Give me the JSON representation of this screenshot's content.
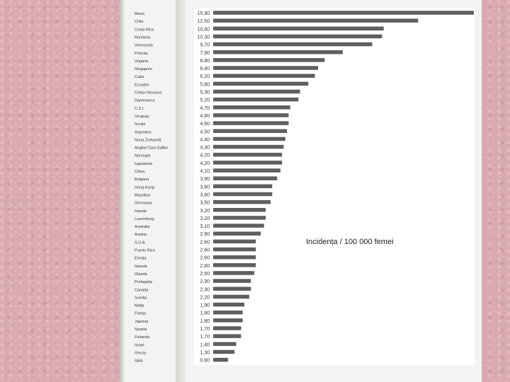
{
  "chart_data": {
    "type": "bar",
    "orientation": "horizontal",
    "title": "",
    "xlabel": "Incidența / 100 000 femei",
    "xlim": [
      0,
      15.9
    ],
    "grid": false,
    "categories": [
      "Mexic",
      "Chile",
      "Costa Rica",
      "România",
      "Venezuela",
      "Polonia",
      "Ungaria",
      "Singapore",
      "Cuba",
      "Ecuador",
      "Cehia+Slovacia",
      "Danemarca",
      "C.S.I.",
      "Uruguay",
      "Scoţia",
      "Argentina",
      "Noua Zeelandă",
      "Anglia+Ţara Galilor",
      "Norvegia",
      "Iugoslavia",
      "China",
      "Bulgaria",
      "Hong-Kong",
      "Mauritius",
      "Germania",
      "Irlanda",
      "Luxemburg",
      "Australia",
      "Austria",
      "S.U.A.",
      "Puerto Rico",
      "Elveţia",
      "Islanda",
      "Olanda",
      "Portugalia",
      "Canada",
      "Suedia",
      "Malta",
      "Franţa",
      "Japonia",
      "Spania",
      "Finlanda",
      "Israel",
      "Grecia",
      "Italia"
    ],
    "values": [
      15.9,
      12.5,
      10.4,
      10.3,
      9.7,
      7.9,
      6.8,
      6.4,
      6.2,
      5.8,
      5.3,
      5.2,
      4.7,
      4.6,
      4.6,
      4.5,
      4.4,
      4.3,
      4.2,
      4.2,
      4.1,
      3.9,
      3.6,
      3.6,
      3.5,
      3.2,
      3.2,
      3.1,
      2.9,
      2.6,
      2.6,
      2.6,
      2.6,
      2.5,
      2.3,
      2.3,
      2.2,
      1.9,
      1.8,
      1.8,
      1.7,
      1.7,
      1.4,
      1.3,
      0.9
    ],
    "value_labels": [
      "15,90",
      "12,50",
      "10,40",
      "10,30",
      "9,70",
      "7,90",
      "6,80",
      "6,40",
      "6,20",
      "5,80",
      "5,30",
      "5,20",
      "4,70",
      "4,60",
      "4,60",
      "4,50",
      "4,40",
      "4,30",
      "4,20",
      "4,20",
      "4,10",
      "3,90",
      "3,60",
      "3,60",
      "3,50",
      "3,20",
      "3,20",
      "3,10",
      "2,90",
      "2,60",
      "2,60",
      "2,60",
      "2,60",
      "2,50",
      "2,30",
      "2,30",
      "2,20",
      "1,90",
      "1,80",
      "1,80",
      "1,70",
      "1,70",
      "1,40",
      "1,30",
      "0,90"
    ],
    "bar_color": "#5f5f5f",
    "label_color": "#333333"
  },
  "colors": {
    "slide_background": "#d9a9b0",
    "scan_paper": "#f3f3f1",
    "plot_panel": "#ffffff"
  }
}
